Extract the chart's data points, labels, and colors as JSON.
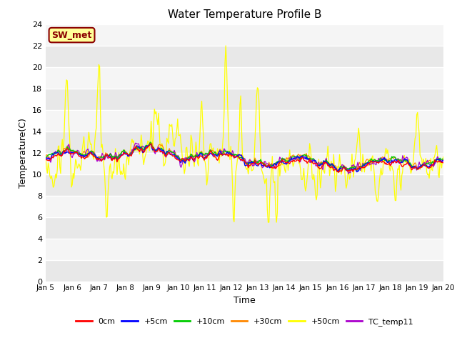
{
  "title": "Water Temperature Profile B",
  "xlabel": "Time",
  "ylabel": "Temperature(C)",
  "ylim": [
    0,
    24
  ],
  "yticks": [
    0,
    2,
    4,
    6,
    8,
    10,
    12,
    14,
    16,
    18,
    20,
    22,
    24
  ],
  "x_labels": [
    "Jan 5",
    "Jan 6",
    "Jan 7",
    "Jan 8",
    "Jan 9",
    "Jan 10",
    "Jan 11",
    "Jan 12",
    "Jan 13",
    "Jan 14",
    "Jan 15",
    "Jan 16",
    "Jan 17",
    "Jan 18",
    "Jan 19",
    "Jan 20"
  ],
  "annotation_text": "SW_met",
  "annotation_bg": "#ffff99",
  "annotation_fg": "#8b0000",
  "plot_bg": "#e8e8e8",
  "stripe_bg": "#f0f0f0",
  "legend": [
    {
      "label": "0cm",
      "color": "#ff0000"
    },
    {
      "label": "+5cm",
      "color": "#0000ff"
    },
    {
      "label": "+10cm",
      "color": "#00cc00"
    },
    {
      "label": "+30cm",
      "color": "#ff8800"
    },
    {
      "label": "+50cm",
      "color": "#ffff00"
    },
    {
      "label": "TC_temp11",
      "color": "#aa00cc"
    }
  ],
  "n_points": 480,
  "seed": 42
}
